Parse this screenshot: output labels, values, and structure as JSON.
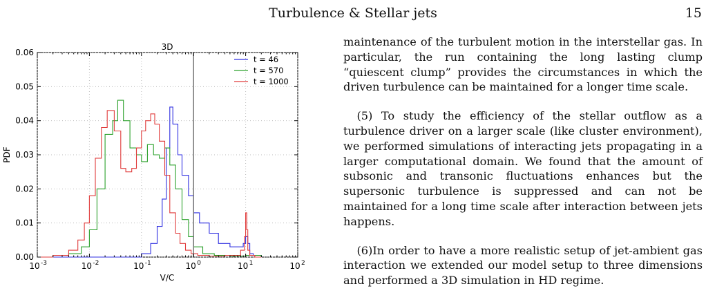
{
  "header": {
    "running_title": "Turbulence & Stellar jets",
    "page_number": "15"
  },
  "figure": {
    "chart_data": {
      "type": "line",
      "title": "3D",
      "xlabel": "V/C",
      "ylabel": "PDF",
      "xscale": "log",
      "xlim": [
        0.001,
        100
      ],
      "ylim": [
        0,
        0.06
      ],
      "x_ticks": [
        "10",
        "10",
        "10",
        "10",
        "10",
        "10"
      ],
      "x_tick_exponents": [
        "-3",
        "-2",
        "-1",
        "0",
        "1",
        "2"
      ],
      "x_tick_values": [
        0.001,
        0.01,
        0.1,
        1,
        10,
        100
      ],
      "y_ticks": [
        "0.00",
        "0.01",
        "0.02",
        "0.03",
        "0.04",
        "0.05",
        "0.06"
      ],
      "y_tick_values": [
        0,
        0.01,
        0.02,
        0.03,
        0.04,
        0.05,
        0.06
      ],
      "vline_x": 1,
      "legend_position": "top-right",
      "series": [
        {
          "name": "t = 46",
          "color": "#2e2ee0",
          "x": [
            0.001,
            0.05,
            0.1,
            0.15,
            0.2,
            0.25,
            0.3,
            0.35,
            0.4,
            0.5,
            0.6,
            0.8,
            1,
            1.3,
            2,
            3,
            5,
            7,
            9,
            10,
            11,
            12,
            14,
            20
          ],
          "y": [
            0,
            0,
            0.001,
            0.004,
            0.009,
            0.017,
            0.032,
            0.044,
            0.039,
            0.03,
            0.024,
            0.018,
            0.013,
            0.01,
            0.007,
            0.004,
            0.003,
            0.003,
            0.004,
            0.006,
            0.004,
            0.001,
            0.0005,
            0
          ]
        },
        {
          "name": "t = 570",
          "color": "#2aa02a",
          "x": [
            0.001,
            0.002,
            0.004,
            0.007,
            0.01,
            0.014,
            0.02,
            0.028,
            0.035,
            0.045,
            0.06,
            0.08,
            0.1,
            0.13,
            0.17,
            0.22,
            0.28,
            0.35,
            0.45,
            0.6,
            0.8,
            1,
            1.5,
            2.5,
            5,
            10,
            20
          ],
          "y": [
            0,
            0.0005,
            0.001,
            0.003,
            0.008,
            0.02,
            0.036,
            0.04,
            0.046,
            0.04,
            0.032,
            0.03,
            0.028,
            0.033,
            0.03,
            0.029,
            0.032,
            0.027,
            0.02,
            0.011,
            0.006,
            0.003,
            0.001,
            0.0005,
            0.0003,
            0.0005,
            0
          ]
        },
        {
          "name": "t = 1000",
          "color": "#e03a3a",
          "x": [
            0.001,
            0.002,
            0.004,
            0.006,
            0.008,
            0.01,
            0.013,
            0.017,
            0.022,
            0.03,
            0.04,
            0.05,
            0.065,
            0.08,
            0.1,
            0.12,
            0.15,
            0.18,
            0.22,
            0.28,
            0.35,
            0.45,
            0.55,
            0.7,
            0.9,
            1.2,
            2,
            4,
            8,
            9.5,
            10,
            10.5,
            11,
            12,
            15,
            20
          ],
          "y": [
            0,
            0.0005,
            0.002,
            0.005,
            0.01,
            0.018,
            0.029,
            0.038,
            0.043,
            0.037,
            0.026,
            0.025,
            0.026,
            0.032,
            0.037,
            0.04,
            0.042,
            0.039,
            0.034,
            0.024,
            0.013,
            0.007,
            0.004,
            0.002,
            0.001,
            0.0005,
            0.0003,
            0.0005,
            0.002,
            0.006,
            0.013,
            0.008,
            0.002,
            0.0005,
            0,
            0
          ]
        }
      ]
    }
  },
  "text": {
    "paragraphs": [
      "maintenance of the turbulent motion in the interstellar gas. In particular, the run containing the long lasting clump “quiescent clump” provides the circumstances in which the driven turbulence can be maintained for a longer time scale.",
      "(5) To study the efficiency of the stellar outflow as a turbulence driver on a larger scale (like cluster environment), we performed simulations of interacting jets propagating in a larger computational domain. We found that the amount of subsonic and transonic fluctuations enhances but the supersonic turbulence is suppressed and can not be maintained for a long time scale after interaction between jets happens.",
      "(6)In order to have a more realistic setup of jet-ambient gas interaction we extended our model setup to three dimensions and performed a 3D simulation in HD regime."
    ]
  }
}
